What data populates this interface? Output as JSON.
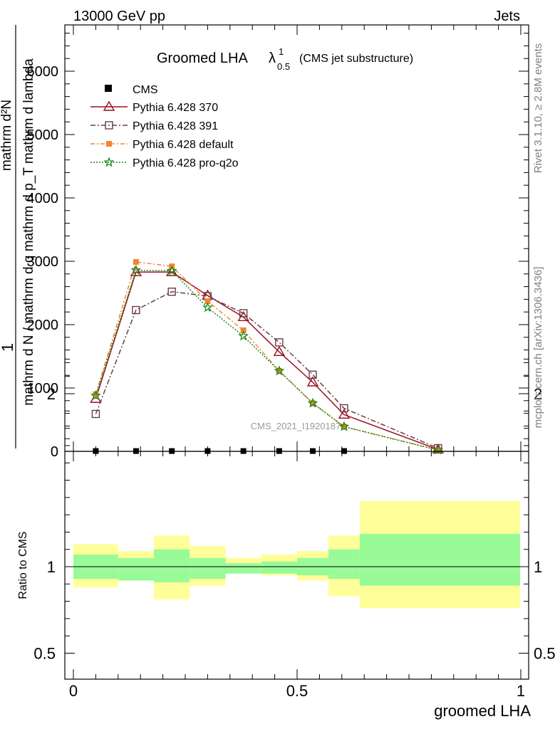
{
  "header": {
    "beam": "13000 GeV pp",
    "category": "Jets"
  },
  "side": {
    "rivet": "Rivet 3.1.10, ≥ 2.8M events",
    "mcplots": "mcplots.cern.ch [arXiv:1306.3436]"
  },
  "watermark": "CMS_2021_I1920187",
  "chart_data": {
    "type": "line",
    "title_main": "Groomed LHA",
    "title_symbol": "λ",
    "title_sup": "1",
    "title_sub": "0.5",
    "title_note": "(CMS jet substructure)",
    "xlabel": "groomed LHA",
    "ylabel_num": "1",
    "ylabel_den": "mathrm d N / mathrm d q mathrm d p_T mathrm d lambda",
    "ylabel_top": "mathrm d²N",
    "ratio_ylabel": "Ratio to CMS",
    "xlim": [
      0,
      1
    ],
    "ylim": [
      0,
      6700
    ],
    "main_yticks": [
      0,
      1000,
      2000,
      3000,
      4000,
      5000,
      6000
    ],
    "main_ytick_labels": [
      "0",
      "1000",
      "2000",
      "3000",
      "4000",
      "5000",
      "6000"
    ],
    "ratio_ylim": [
      0.4,
      2.3
    ],
    "ratio_yticks": [
      0.5,
      1,
      2
    ],
    "ratio_ytick_labels": [
      "0.5",
      "1",
      "2"
    ],
    "xticks": [
      0,
      0.5,
      1
    ],
    "xtick_labels": [
      "0",
      "0.5",
      "1"
    ],
    "x": [
      0.05,
      0.14,
      0.22,
      0.3,
      0.38,
      0.46,
      0.535,
      0.605,
      0.815
    ],
    "bin_edges": [
      0,
      0.1,
      0.18,
      0.26,
      0.34,
      0.42,
      0.5,
      0.57,
      0.64,
      1.0
    ],
    "cms": {
      "name": "CMS",
      "x": [
        0.05,
        0.14,
        0.22,
        0.3,
        0.38,
        0.46,
        0.535,
        0.605
      ],
      "values": [
        5,
        5,
        5,
        5,
        5,
        5,
        5,
        5
      ],
      "color": "#000000"
    },
    "series": [
      {
        "name": "Pythia 6.428 370",
        "values": [
          830,
          2830,
          2830,
          2460,
          2120,
          1570,
          1090,
          580,
          30
        ],
        "color": "#9b0f1e",
        "marker": "triangle",
        "dash": ""
      },
      {
        "name": "Pythia 6.428 391",
        "values": [
          590,
          2230,
          2520,
          2450,
          2180,
          1720,
          1210,
          680,
          50
        ],
        "color": "#6b3b4a",
        "marker": "square-open",
        "dash": "7,3,2,3"
      },
      {
        "name": "Pythia 6.428 default",
        "values": [
          900,
          2990,
          2920,
          2370,
          1910,
          1270,
          760,
          390,
          20
        ],
        "color": "#f28533",
        "marker": "square-filled",
        "dash": "6,3,2,3"
      },
      {
        "name": "Pythia 6.428 pro-q2o",
        "values": [
          880,
          2860,
          2850,
          2270,
          1820,
          1270,
          760,
          390,
          20
        ],
        "color": "#1b8a1b",
        "marker": "star",
        "dash": "2,2"
      }
    ],
    "ratio_band": {
      "inner_color": "#98fb98",
      "outer_color": "#ffff99",
      "inner_lo": [
        0.93,
        0.92,
        0.91,
        0.93,
        0.96,
        0.96,
        0.95,
        0.93,
        0.89
      ],
      "inner_hi": [
        1.07,
        1.05,
        1.1,
        1.05,
        1.02,
        1.03,
        1.05,
        1.1,
        1.19
      ],
      "outer_lo": [
        0.88,
        0.92,
        0.81,
        0.89,
        0.96,
        0.95,
        0.92,
        0.83,
        0.76
      ],
      "outer_hi": [
        1.13,
        1.09,
        1.18,
        1.12,
        1.05,
        1.07,
        1.09,
        1.18,
        1.38
      ]
    }
  }
}
